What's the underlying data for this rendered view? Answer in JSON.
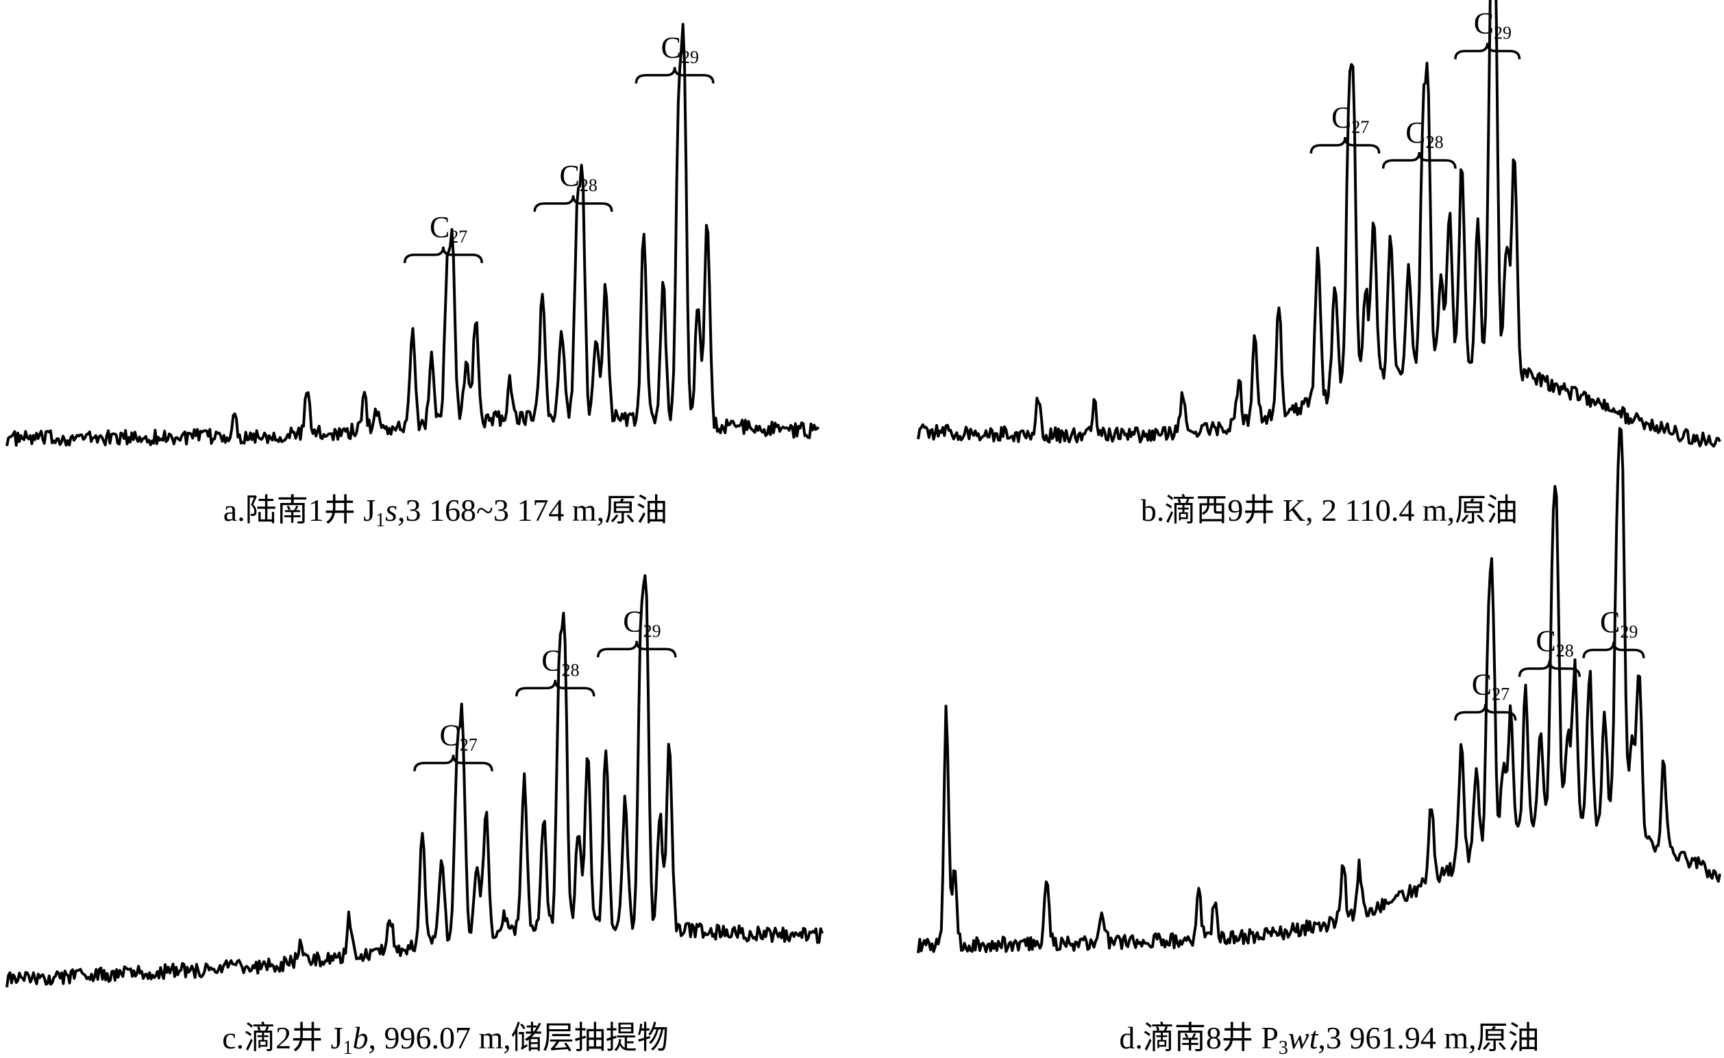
{
  "chart_data": [
    {
      "type": "line",
      "caption": "a.陆南1井 J₁s,3 168~3 174 m,原油",
      "caption_parts": {
        "prefix": "a.陆南1井 J",
        "sub": "1",
        "italic": "s",
        "suffix": ",3 168~3 174 m,原油"
      },
      "peak_groups": [
        {
          "label": "C",
          "sub": "27",
          "range": [
            0.49,
            0.585
          ],
          "height": 0.46
        },
        {
          "label": "C",
          "sub": "28",
          "range": [
            0.65,
            0.745
          ],
          "height": 0.6
        },
        {
          "label": "C",
          "sub": "29",
          "range": [
            0.775,
            0.87
          ],
          "height": 0.95
        }
      ]
    },
    {
      "type": "line",
      "caption": "b.滴西9井 K, 2 110.4 m,原油",
      "caption_parts": {
        "prefix": "b.滴西9井 K, 2 110.4 m,原油",
        "sub": "",
        "italic": "",
        "suffix": ""
      },
      "peak_groups": [
        {
          "label": "C",
          "sub": "27",
          "range": [
            0.49,
            0.575
          ],
          "height": 0.72
        },
        {
          "label": "C",
          "sub": "28",
          "range": [
            0.58,
            0.67
          ],
          "height": 0.68
        },
        {
          "label": "C",
          "sub": "29",
          "range": [
            0.67,
            0.75
          ],
          "height": 0.97
        }
      ]
    },
    {
      "type": "line",
      "caption": "c.滴2井 J₁b, 996.07 m,储层抽提物",
      "caption_parts": {
        "prefix": "c.滴2井 J",
        "sub": "1",
        "italic": "b",
        "suffix": ", 996.07 m,储层抽提物"
      },
      "peak_groups": [
        {
          "label": "C",
          "sub": "27",
          "range": [
            0.5,
            0.595
          ],
          "height": 0.62
        },
        {
          "label": "C",
          "sub": "28",
          "range": [
            0.625,
            0.72
          ],
          "height": 0.85
        },
        {
          "label": "C",
          "sub": "29",
          "range": [
            0.725,
            0.82
          ],
          "height": 0.97
        }
      ]
    },
    {
      "type": "line",
      "caption": "d.滴南8井 P₃wt,3 961.94 m,原油",
      "caption_parts": {
        "prefix": "d.滴南8井 P",
        "sub": "3",
        "italic": "wt",
        "suffix": ",3 961.94 m,原油"
      },
      "peak_groups": [
        {
          "label": "C",
          "sub": "27",
          "range": [
            0.67,
            0.745
          ],
          "height": 0.7
        },
        {
          "label": "C",
          "sub": "28",
          "range": [
            0.75,
            0.825
          ],
          "height": 0.84
        },
        {
          "label": "C",
          "sub": "29",
          "range": [
            0.83,
            0.905
          ],
          "height": 0.9
        }
      ]
    }
  ]
}
